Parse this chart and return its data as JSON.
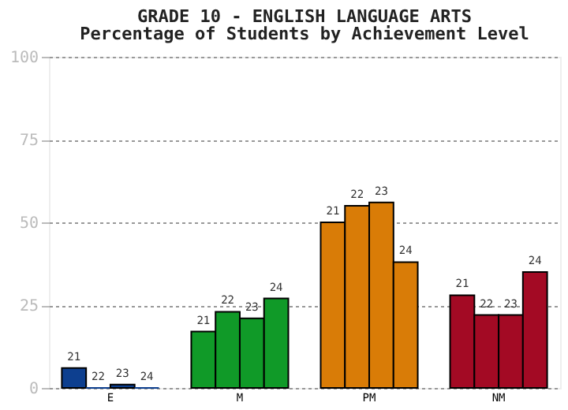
{
  "chart_data": {
    "type": "bar",
    "title": "GRADE 10 - ENGLISH LANGUAGE ARTS",
    "subtitle": "Percentage of Students by Achievement Level",
    "categories": [
      "E",
      "M",
      "PM",
      "NM"
    ],
    "series": [
      {
        "name": "21",
        "colors": [
          "#0d3f8f",
          "#109a28",
          "#d97c07",
          "#a30a24"
        ],
        "values": [
          6,
          17,
          50,
          28
        ]
      },
      {
        "name": "22",
        "colors": [
          "#0d3f8f",
          "#109a28",
          "#d97c07",
          "#a30a24"
        ],
        "values": [
          0,
          23,
          55,
          22
        ]
      },
      {
        "name": "23",
        "colors": [
          "#0d3f8f",
          "#109a28",
          "#d97c07",
          "#a30a24"
        ],
        "values": [
          1,
          21,
          56,
          22
        ]
      },
      {
        "name": "24",
        "colors": [
          "#0d3f8f",
          "#109a28",
          "#d97c07",
          "#a30a24"
        ],
        "values": [
          0,
          27,
          38,
          35
        ]
      }
    ],
    "ylim": [
      0,
      100
    ],
    "yticks": [
      0,
      25,
      50,
      75,
      100
    ],
    "grid": "y"
  }
}
